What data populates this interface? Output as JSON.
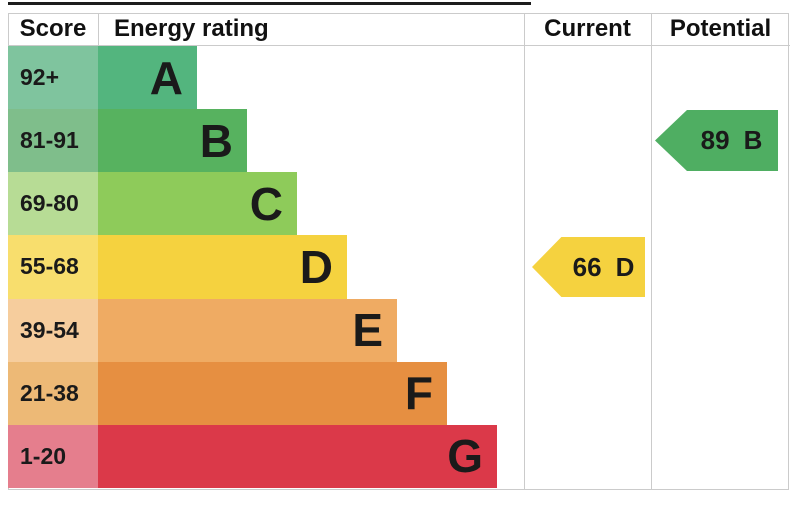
{
  "header": {
    "score": "Score",
    "energy_rating": "Energy rating",
    "current": "Current",
    "potential": "Potential"
  },
  "bands": [
    {
      "score": "92+",
      "letter": "A",
      "bar_color": "#53b57e",
      "tint_color": "#7fc49e"
    },
    {
      "score": "81-91",
      "letter": "B",
      "bar_color": "#57b25f",
      "tint_color": "#7fbe8b"
    },
    {
      "score": "69-80",
      "letter": "C",
      "bar_color": "#8ecb5a",
      "tint_color": "#b7dc95"
    },
    {
      "score": "55-68",
      "letter": "D",
      "bar_color": "#f5d23f",
      "tint_color": "#f8de6d"
    },
    {
      "score": "39-54",
      "letter": "E",
      "bar_color": "#efab63",
      "tint_color": "#f6cd9d"
    },
    {
      "score": "21-38",
      "letter": "F",
      "bar_color": "#e68f41",
      "tint_color": "#edb976"
    },
    {
      "score": "1-20",
      "letter": "G",
      "bar_color": "#db3949",
      "tint_color": "#e57e8d"
    }
  ],
  "current": {
    "score": "66",
    "letter": "D",
    "color": "#f5d23f"
  },
  "potential": {
    "score": "89",
    "letter": "B",
    "color": "#4fae62"
  },
  "chart_data": {
    "type": "table",
    "title": "EPC energy efficiency rating chart",
    "columns": [
      "Score",
      "Energy rating",
      "Current",
      "Potential"
    ],
    "bands": [
      {
        "band": "A",
        "score_range": "92+"
      },
      {
        "band": "B",
        "score_range": "81-91"
      },
      {
        "band": "C",
        "score_range": "69-80"
      },
      {
        "band": "D",
        "score_range": "55-68"
      },
      {
        "band": "E",
        "score_range": "39-54"
      },
      {
        "band": "F",
        "score_range": "21-38"
      },
      {
        "band": "G",
        "score_range": "1-20"
      }
    ],
    "current": {
      "value": 66,
      "band": "D"
    },
    "potential": {
      "value": 89,
      "band": "B"
    },
    "legend_position": "none",
    "grid": "column-separators"
  }
}
